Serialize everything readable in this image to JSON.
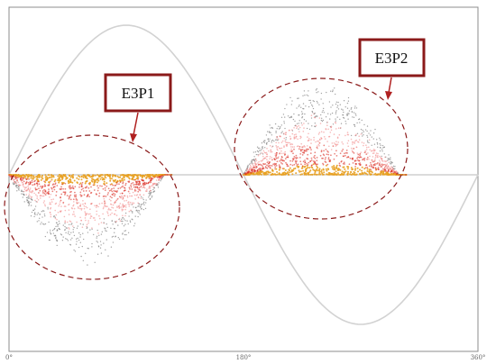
{
  "chart_data": {
    "type": "scatter",
    "title": "",
    "xlabel": "",
    "ylabel": "",
    "x_ticks": [
      "0°",
      "180°",
      "360°"
    ],
    "xlim": [
      0,
      360
    ],
    "ylim": [
      -1.15,
      1.15
    ],
    "reference_sine": {
      "amplitude": 1.0,
      "period_deg": 360
    },
    "zero_line": true,
    "series": [
      {
        "name": "E3P1",
        "phase_range_deg": [
          0,
          125
        ],
        "polarity": "negative",
        "peak_amplitude": 0.62
      },
      {
        "name": "E3P2",
        "phase_range_deg": [
          180,
          305
        ],
        "polarity": "positive",
        "peak_amplitude": 0.65
      }
    ],
    "annotations": [
      {
        "text": "E3P1",
        "target": "E3P1"
      },
      {
        "text": "E3P2",
        "target": "E3P2"
      }
    ],
    "colors": {
      "sine": "#d2d2d2",
      "frame": "#8c8c8c",
      "zero_line": "#cfcfcf",
      "dense": "#d81e12",
      "medium": "#f28a8a",
      "sparse": "#7a7a7a",
      "core": "#e8a020",
      "callout": "#8b1a1a",
      "ellipse": "#8b1a1a"
    }
  }
}
